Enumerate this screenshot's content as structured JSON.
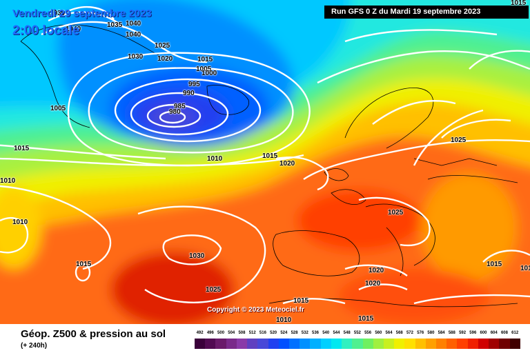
{
  "header": {
    "valid_time": "Vendredi 29 septembre 2023",
    "local_time": "2:00 locale",
    "run_info": "Run GFS 0 Z du Mardi 19 septembre 2023"
  },
  "copyright": "Copyright © 2023 Meteociel.fr",
  "footer": {
    "title": "Géop. Z500 & pression au sol",
    "subtitle": "(+ 240h)"
  },
  "legend": {
    "ticks": [
      "492",
      "496",
      "500",
      "504",
      "508",
      "512",
      "516",
      "520",
      "524",
      "528",
      "532",
      "536",
      "540",
      "544",
      "548",
      "552",
      "556",
      "560",
      "564",
      "568",
      "572",
      "576",
      "580",
      "584",
      "588",
      "592",
      "596",
      "600",
      "604",
      "608",
      "612"
    ],
    "colors": [
      "#3a003a",
      "#520a52",
      "#6a1a6a",
      "#7a2a8a",
      "#8a3aa8",
      "#6040c0",
      "#4848d8",
      "#2040f0",
      "#0050ff",
      "#0070ff",
      "#0090ff",
      "#00b0ff",
      "#00d0ff",
      "#00e8f0",
      "#30f0c0",
      "#50f090",
      "#70f060",
      "#a0f040",
      "#c8f020",
      "#f0f000",
      "#ffe000",
      "#ffc000",
      "#ffa000",
      "#ff8000",
      "#ff6000",
      "#ff4000",
      "#f02000",
      "#d00000",
      "#a00000",
      "#700000",
      "#400000"
    ]
  },
  "isobars": [
    {
      "value": "1035"
    },
    {
      "value": "1040"
    },
    {
      "value": "1040"
    },
    {
      "value": "1030"
    },
    {
      "value": "1040"
    },
    {
      "value": "1030"
    },
    {
      "value": "1025"
    },
    {
      "value": "1020"
    },
    {
      "value": "1015"
    },
    {
      "value": "1005"
    },
    {
      "value": "1000"
    },
    {
      "value": "995"
    },
    {
      "value": "990"
    },
    {
      "value": "985"
    },
    {
      "value": "980"
    },
    {
      "value": "1005"
    },
    {
      "value": "1015"
    },
    {
      "value": "1010"
    },
    {
      "value": "1015"
    },
    {
      "value": "1020"
    },
    {
      "value": "1010"
    },
    {
      "value": "1010"
    },
    {
      "value": "1025"
    },
    {
      "value": "1025"
    },
    {
      "value": "1030"
    },
    {
      "value": "1015"
    },
    {
      "value": "1025"
    },
    {
      "value": "1020"
    },
    {
      "value": "1020"
    },
    {
      "value": "1015"
    },
    {
      "value": "1015"
    },
    {
      "value": "1010"
    },
    {
      "value": "1015"
    },
    {
      "value": "1015"
    },
    {
      "value": "1010"
    }
  ],
  "colors": {
    "title_blue": "#1e6cff",
    "run_bg": "#000000"
  }
}
